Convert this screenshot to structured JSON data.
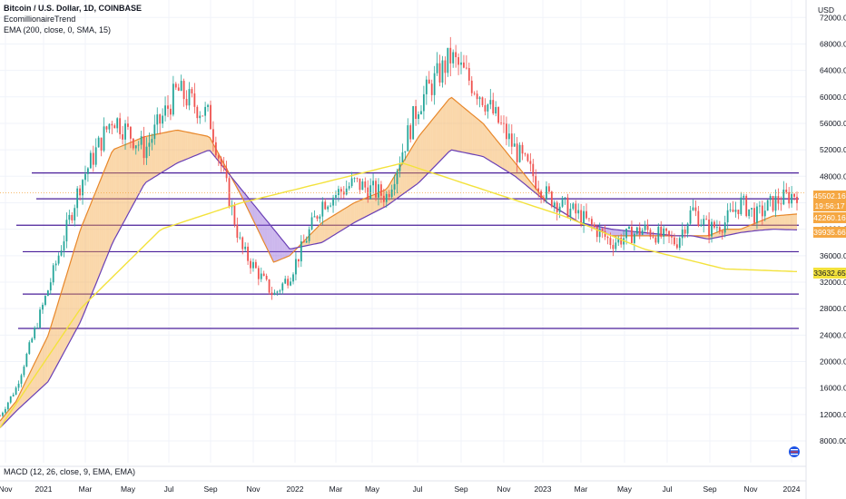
{
  "header": {
    "symbol_line": "Bitcoin / U.S. Dollar, 1D, COINBASE",
    "indicator_1": "EcomillionaireTrend",
    "indicator_2": "EMA (200, close, 0, SMA, 15)",
    "currency": "USD"
  },
  "macd_pane": {
    "label": "MACD (12, 26, close, 9, EMA, EMA)"
  },
  "colors": {
    "candle_up": "#26a69a",
    "candle_down": "#ef5350",
    "band_up": "#f5a742",
    "band_down": "#8e5fd6",
    "ema200": "#f3e23c",
    "hline": "#4a1f9a",
    "last_price_tag": "#f5a742",
    "ema_tag": "#f3e23c"
  },
  "chart_data": {
    "type": "line",
    "x_ticks": [
      "Nov",
      "2021",
      "Mar",
      "May",
      "Jul",
      "Sep",
      "Nov",
      "2022",
      "Mar",
      "May",
      "Jul",
      "Sep",
      "Nov",
      "2023",
      "Mar",
      "May",
      "Jul",
      "Sep",
      "Nov",
      "2024"
    ],
    "y_ticks": [
      8000,
      12000,
      16000,
      20000,
      24000,
      28000,
      32000,
      36000,
      40000,
      44000,
      48000,
      52000,
      56000,
      60000,
      64000,
      68000,
      72000
    ],
    "ylim": [
      6000,
      73000
    ],
    "price_tags": [
      {
        "value": "45502.16",
        "kind": "price"
      },
      {
        "value": "19:56:17",
        "kind": "timer"
      },
      {
        "value": "42260.16",
        "kind": "trend"
      },
      {
        "value": "39935.66",
        "kind": "trend"
      },
      {
        "value": "33632.65",
        "kind": "ema"
      }
    ],
    "horizontal_levels": [
      48500,
      44600,
      40600,
      36600,
      30200,
      25000
    ],
    "series": [
      {
        "x": [
          0,
          2,
          6,
          10,
          14,
          18,
          22,
          26,
          30,
          34,
          36,
          40,
          44,
          48,
          52,
          56,
          60,
          64,
          68,
          72,
          76,
          80,
          84,
          86,
          88,
          90,
          92,
          94,
          96,
          99
        ],
        "values": [
          11800,
          16000,
          31000,
          47000,
          57000,
          52000,
          61000,
          57000,
          37000,
          30000,
          33000,
          44000,
          47000,
          45000,
          59000,
          66000,
          60000,
          52000,
          45000,
          42000,
          38000,
          40000,
          38000,
          43000,
          40000,
          41000,
          44000,
          42000,
          44000,
          45500
        ]
      },
      {
        "x": [
          0,
          2,
          6,
          10,
          14,
          18,
          22,
          26,
          30,
          34,
          36,
          40,
          44,
          48,
          52,
          56,
          60,
          64,
          68,
          72,
          76,
          80,
          84,
          86,
          88,
          90,
          92,
          94,
          96,
          99
        ],
        "values": [
          11000,
          14000,
          24000,
          40000,
          52000,
          54000,
          55000,
          54000,
          45000,
          35000,
          36000,
          41000,
          44000,
          46000,
          54000,
          60000,
          56000,
          50000,
          44000,
          41000,
          39000,
          39000,
          39000,
          39000,
          39000,
          40000,
          40000,
          41000,
          42000,
          42300
        ]
      },
      {
        "x": [
          0,
          2,
          6,
          10,
          14,
          18,
          22,
          26,
          30,
          34,
          36,
          40,
          44,
          48,
          52,
          56,
          60,
          64,
          68,
          72,
          76,
          80,
          84,
          86,
          88,
          90,
          92,
          94,
          96,
          99
        ],
        "values": [
          10000,
          12500,
          17000,
          26000,
          38000,
          47000,
          50000,
          52000,
          46000,
          40000,
          37000,
          38000,
          41000,
          43500,
          47000,
          52000,
          51000,
          48000,
          44000,
          41000,
          40000,
          39500,
          39000,
          39000,
          38500,
          39000,
          39500,
          39800,
          40000,
          39900
        ]
      },
      {
        "x": [
          0,
          10,
          20,
          30,
          40,
          50,
          60,
          70,
          80,
          90,
          99
        ],
        "values": [
          10000,
          28000,
          40000,
          44000,
          47000,
          50000,
          46000,
          42000,
          37000,
          34000,
          33600
        ]
      }
    ]
  }
}
